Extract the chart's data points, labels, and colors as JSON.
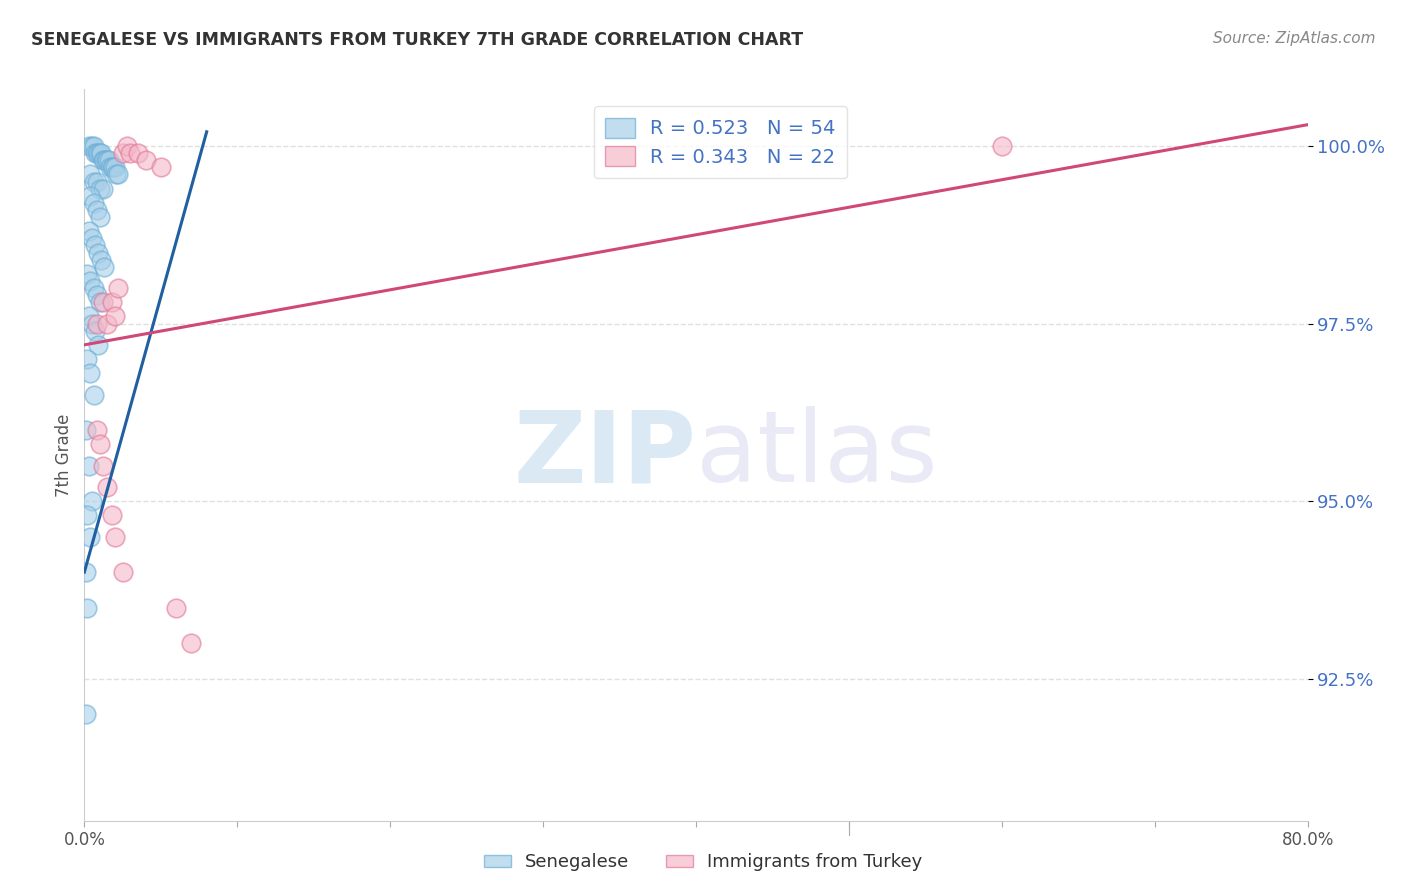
{
  "title": "SENEGALESE VS IMMIGRANTS FROM TURKEY 7TH GRADE CORRELATION CHART",
  "source": "Source: ZipAtlas.com",
  "ylabel": "7th Grade",
  "ytick_labels": [
    "92.5%",
    "95.0%",
    "97.5%",
    "100.0%"
  ],
  "ytick_values": [
    0.925,
    0.95,
    0.975,
    1.0
  ],
  "xlim": [
    0.0,
    0.8
  ],
  "ylim": [
    0.905,
    1.008
  ],
  "legend_blue_R": "0.523",
  "legend_blue_N": "54",
  "legend_pink_R": "0.343",
  "legend_pink_N": "22",
  "blue_color": "#a8cfe8",
  "blue_edge_color": "#6aaed6",
  "blue_line_color": "#2060a0",
  "pink_color": "#f4b8c8",
  "pink_edge_color": "#e07898",
  "pink_line_color": "#d04878",
  "blue_scatter_x": [
    0.003,
    0.005,
    0.006,
    0.007,
    0.008,
    0.009,
    0.01,
    0.011,
    0.012,
    0.013,
    0.014,
    0.015,
    0.016,
    0.017,
    0.018,
    0.019,
    0.02,
    0.021,
    0.022,
    0.004,
    0.006,
    0.008,
    0.01,
    0.012,
    0.004,
    0.006,
    0.008,
    0.01,
    0.003,
    0.005,
    0.007,
    0.009,
    0.011,
    0.013,
    0.002,
    0.004,
    0.006,
    0.008,
    0.01,
    0.003,
    0.005,
    0.007,
    0.009,
    0.002,
    0.004,
    0.006,
    0.001,
    0.003,
    0.005,
    0.002,
    0.004,
    0.001,
    0.002,
    0.001
  ],
  "blue_scatter_y": [
    1.0,
    1.0,
    1.0,
    0.999,
    0.999,
    0.999,
    0.999,
    0.999,
    0.998,
    0.998,
    0.998,
    0.998,
    0.998,
    0.997,
    0.997,
    0.997,
    0.997,
    0.996,
    0.996,
    0.996,
    0.995,
    0.995,
    0.994,
    0.994,
    0.993,
    0.992,
    0.991,
    0.99,
    0.988,
    0.987,
    0.986,
    0.985,
    0.984,
    0.983,
    0.982,
    0.981,
    0.98,
    0.979,
    0.978,
    0.976,
    0.975,
    0.974,
    0.972,
    0.97,
    0.968,
    0.965,
    0.96,
    0.955,
    0.95,
    0.948,
    0.945,
    0.94,
    0.935,
    0.92
  ],
  "pink_scatter_x": [
    0.008,
    0.012,
    0.015,
    0.018,
    0.02,
    0.022,
    0.025,
    0.028,
    0.03,
    0.035,
    0.04,
    0.05,
    0.008,
    0.01,
    0.012,
    0.015,
    0.018,
    0.02,
    0.025,
    0.6,
    0.06,
    0.07
  ],
  "pink_scatter_y": [
    0.975,
    0.978,
    0.975,
    0.978,
    0.976,
    0.98,
    0.999,
    1.0,
    0.999,
    0.999,
    0.998,
    0.997,
    0.96,
    0.958,
    0.955,
    0.952,
    0.948,
    0.945,
    0.94,
    1.0,
    0.935,
    0.93
  ],
  "blue_line_x0": 0.0,
  "blue_line_x1": 0.08,
  "blue_line_y0": 0.94,
  "blue_line_y1": 1.002,
  "pink_line_x0": 0.0,
  "pink_line_x1": 0.8,
  "pink_line_y0": 0.972,
  "pink_line_y1": 1.003,
  "watermark_zip": "ZIP",
  "watermark_atlas": "atlas",
  "background_color": "#ffffff",
  "grid_color": "#e0e0e0"
}
